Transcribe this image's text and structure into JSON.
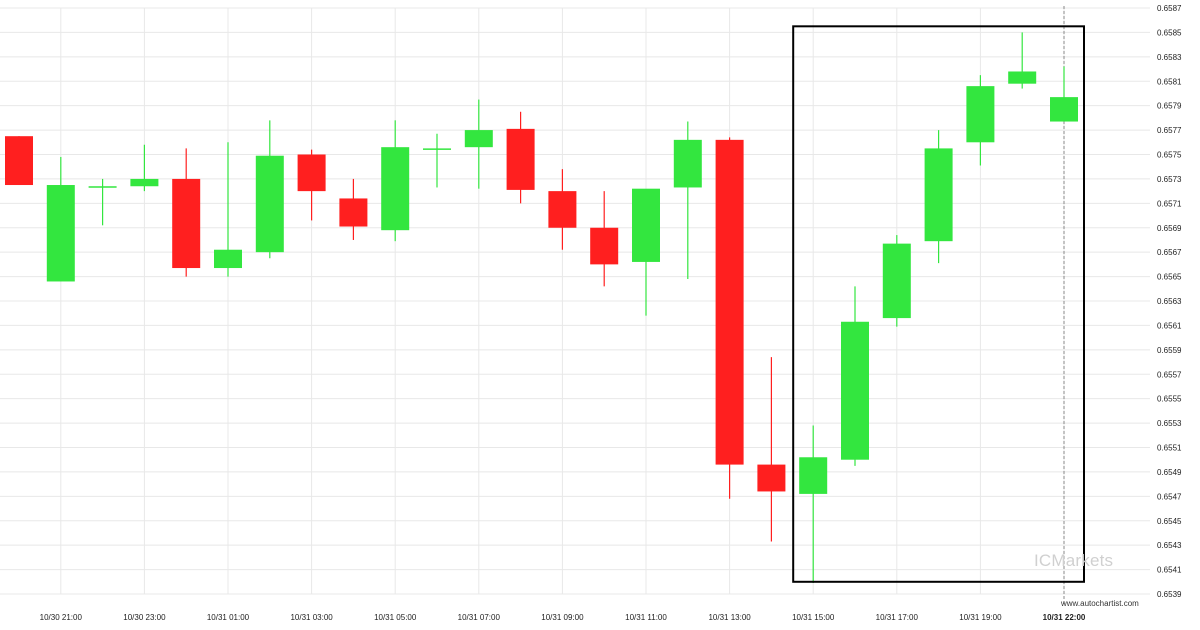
{
  "chart_data": {
    "type": "candlestick",
    "ylim": [
      0.6539,
      0.6587
    ],
    "y_ticks": [
      "0.6587",
      "0.6585",
      "0.6583",
      "0.6581",
      "0.6579",
      "0.6577",
      "0.6575",
      "0.6573",
      "0.6571",
      "0.6569",
      "0.6567",
      "0.6565",
      "0.6563",
      "0.6561",
      "0.6559",
      "0.6557",
      "0.6555",
      "0.6553",
      "0.6551",
      "0.6549",
      "0.6547",
      "0.6545",
      "0.6543",
      "0.6541",
      "0.6539"
    ],
    "x_ticks": [
      {
        "label": "10/30 21:00",
        "index": 1,
        "bold": false
      },
      {
        "label": "10/30 23:00",
        "index": 3,
        "bold": false
      },
      {
        "label": "10/31 01:00",
        "index": 5,
        "bold": false
      },
      {
        "label": "10/31 03:00",
        "index": 7,
        "bold": false
      },
      {
        "label": "10/31 05:00",
        "index": 9,
        "bold": false
      },
      {
        "label": "10/31 07:00",
        "index": 11,
        "bold": false
      },
      {
        "label": "10/31 09:00",
        "index": 13,
        "bold": false
      },
      {
        "label": "10/31 11:00",
        "index": 15,
        "bold": false
      },
      {
        "label": "10/31 13:00",
        "index": 17,
        "bold": false
      },
      {
        "label": "10/31 15:00",
        "index": 19,
        "bold": false
      },
      {
        "label": "10/31 17:00",
        "index": 21,
        "bold": false
      },
      {
        "label": "10/31 19:00",
        "index": 23,
        "bold": false
      },
      {
        "label": "10/31 22:00",
        "index": 25,
        "bold": true
      }
    ],
    "candles": [
      {
        "open": 0.65765,
        "high": 0.65765,
        "low": 0.65725,
        "close": 0.65725
      },
      {
        "open": 0.65646,
        "high": 0.65748,
        "low": 0.65646,
        "close": 0.65725
      },
      {
        "open": 0.65724,
        "high": 0.6573,
        "low": 0.65692,
        "close": 0.65724
      },
      {
        "open": 0.65724,
        "high": 0.65758,
        "low": 0.6572,
        "close": 0.6573
      },
      {
        "open": 0.6573,
        "high": 0.65755,
        "low": 0.6565,
        "close": 0.65657
      },
      {
        "open": 0.65657,
        "high": 0.6576,
        "low": 0.6565,
        "close": 0.65672
      },
      {
        "open": 0.6567,
        "high": 0.65778,
        "low": 0.65665,
        "close": 0.65749
      },
      {
        "open": 0.6575,
        "high": 0.65754,
        "low": 0.65696,
        "close": 0.6572
      },
      {
        "open": 0.65714,
        "high": 0.6573,
        "low": 0.6568,
        "close": 0.65691
      },
      {
        "open": 0.65688,
        "high": 0.65778,
        "low": 0.65679,
        "close": 0.65756
      },
      {
        "open": 0.65755,
        "high": 0.65767,
        "low": 0.65723,
        "close": 0.65755
      },
      {
        "open": 0.65756,
        "high": 0.65795,
        "low": 0.65722,
        "close": 0.6577
      },
      {
        "open": 0.65771,
        "high": 0.65785,
        "low": 0.6571,
        "close": 0.65721
      },
      {
        "open": 0.6572,
        "high": 0.65738,
        "low": 0.65672,
        "close": 0.6569
      },
      {
        "open": 0.6569,
        "high": 0.6572,
        "low": 0.65642,
        "close": 0.6566
      },
      {
        "open": 0.65662,
        "high": 0.65721,
        "low": 0.65618,
        "close": 0.65722
      },
      {
        "open": 0.65723,
        "high": 0.65777,
        "low": 0.65648,
        "close": 0.65762
      },
      {
        "open": 0.65762,
        "high": 0.65764,
        "low": 0.65468,
        "close": 0.65496
      },
      {
        "open": 0.65496,
        "high": 0.65584,
        "low": 0.65433,
        "close": 0.65474
      },
      {
        "open": 0.65472,
        "high": 0.65528,
        "low": 0.65399,
        "close": 0.65502
      },
      {
        "open": 0.655,
        "high": 0.65642,
        "low": 0.65495,
        "close": 0.65613
      },
      {
        "open": 0.65616,
        "high": 0.65684,
        "low": 0.65609,
        "close": 0.65677
      },
      {
        "open": 0.65679,
        "high": 0.6577,
        "low": 0.65661,
        "close": 0.65755
      },
      {
        "open": 0.6576,
        "high": 0.65815,
        "low": 0.65741,
        "close": 0.65806
      },
      {
        "open": 0.65808,
        "high": 0.6585,
        "low": 0.65804,
        "close": 0.65818
      },
      {
        "open": 0.65777,
        "high": 0.65822,
        "low": 0.65777,
        "close": 0.65797
      }
    ],
    "highlight_box": {
      "from_index": 19,
      "to_index": 25,
      "top": 0.65855,
      "bottom": 0.654
    },
    "current_time_index": 25,
    "colors": {
      "up": "#33e63f",
      "down": "#ff1f1f",
      "box": "#000000",
      "grid": "#e8e8e8"
    }
  },
  "watermark": "ICMarkets",
  "source": "www.autochartist.com"
}
